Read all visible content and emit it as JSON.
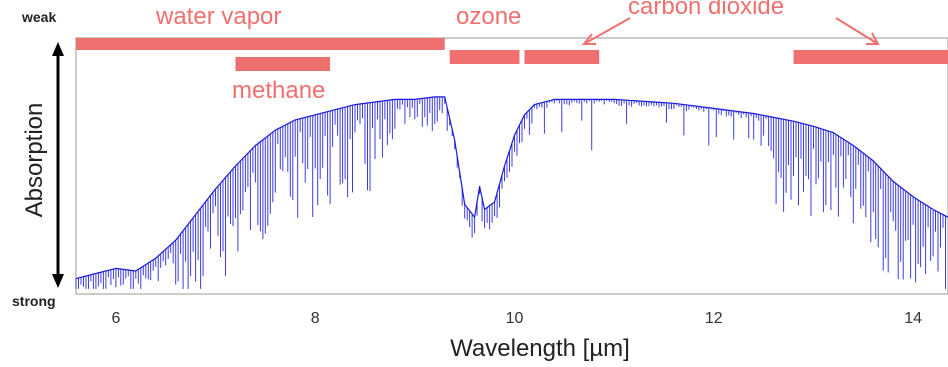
{
  "chart_data": {
    "type": "line",
    "xlabel": "Wavelength [µm]",
    "ylabel": "Absorption",
    "y_top_label": "weak",
    "y_bottom_label": "strong",
    "xlim": [
      5.6,
      14.35
    ],
    "ylim": [
      0,
      1
    ],
    "x_ticks": [
      6,
      8,
      10,
      12,
      14
    ],
    "x_tick_labels": [
      "6",
      "8",
      "10",
      "12",
      "14"
    ],
    "grid": false,
    "colors": {
      "spectrum": "#1a1adb",
      "bands": "#f07070",
      "axis_arrow": "#000000",
      "plot_border": "#9a9a9a"
    },
    "series": [
      {
        "x": [
          5.6,
          5.8,
          6.0,
          6.2,
          6.4,
          6.6,
          6.8,
          7.0,
          7.2,
          7.4,
          7.6,
          7.8,
          8.0,
          8.2,
          8.4,
          8.6,
          8.8,
          9.0,
          9.2,
          9.3,
          9.4,
          9.5,
          9.6,
          9.65,
          9.7,
          9.8,
          9.9,
          10.0,
          10.1,
          10.2,
          10.4,
          10.6,
          10.8,
          11.0,
          11.2,
          11.4,
          11.6,
          11.8,
          12.0,
          12.2,
          12.4,
          12.6,
          12.8,
          13.0,
          13.2,
          13.4,
          13.6,
          13.8,
          14.0,
          14.2,
          14.35
        ],
        "y": [
          0.06,
          0.08,
          0.1,
          0.09,
          0.14,
          0.21,
          0.31,
          0.41,
          0.5,
          0.58,
          0.64,
          0.68,
          0.7,
          0.72,
          0.74,
          0.75,
          0.76,
          0.76,
          0.77,
          0.77,
          0.6,
          0.35,
          0.3,
          0.42,
          0.33,
          0.36,
          0.5,
          0.62,
          0.7,
          0.74,
          0.76,
          0.76,
          0.76,
          0.76,
          0.755,
          0.75,
          0.745,
          0.735,
          0.725,
          0.715,
          0.705,
          0.69,
          0.675,
          0.655,
          0.63,
          0.58,
          0.52,
          0.44,
          0.38,
          0.33,
          0.3
        ]
      }
    ],
    "absorbers": [
      {
        "label": "water vapor",
        "x_range": [
          5.6,
          9.3
        ],
        "row": 1
      },
      {
        "label": "methane",
        "x_range": [
          7.2,
          8.15
        ],
        "row": 2
      },
      {
        "label": "ozone",
        "x_range": [
          9.35,
          10.05
        ],
        "row": 2
      },
      {
        "label": "carbon dioxide",
        "x_range": [
          10.1,
          10.85
        ],
        "row": 2
      },
      {
        "label": "",
        "x_range": [
          12.8,
          14.35
        ],
        "row": 2
      }
    ]
  }
}
